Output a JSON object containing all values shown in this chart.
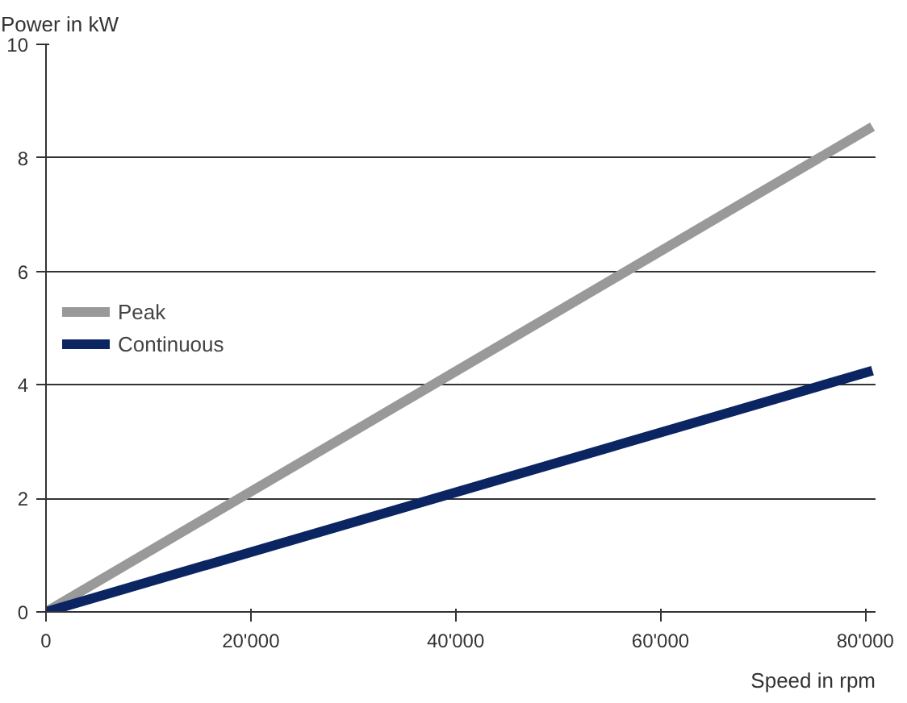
{
  "chart_data": {
    "type": "line",
    "xlabel": "Speed in rpm",
    "ylabel": "Power in kW",
    "x": [
      0,
      80700
    ],
    "series": [
      {
        "name": "Peak",
        "color": "#999999",
        "values": [
          0,
          8.55
        ]
      },
      {
        "name": "Continuous",
        "color": "#0b2563",
        "values": [
          0,
          4.25
        ]
      }
    ],
    "xlim": [
      0,
      81000
    ],
    "ylim": [
      0,
      10
    ],
    "xticks": [
      0,
      {
        "value": 20000,
        "label": "20'000"
      },
      {
        "value": 40000,
        "label": "40'000"
      },
      {
        "value": 60000,
        "label": "60'000"
      },
      {
        "value": 80000,
        "label": "80'000"
      }
    ],
    "yticks": [
      0,
      2,
      4,
      6,
      8,
      10
    ],
    "grid": "y",
    "legend": "center left",
    "line_style": "solid",
    "marker": "none"
  }
}
